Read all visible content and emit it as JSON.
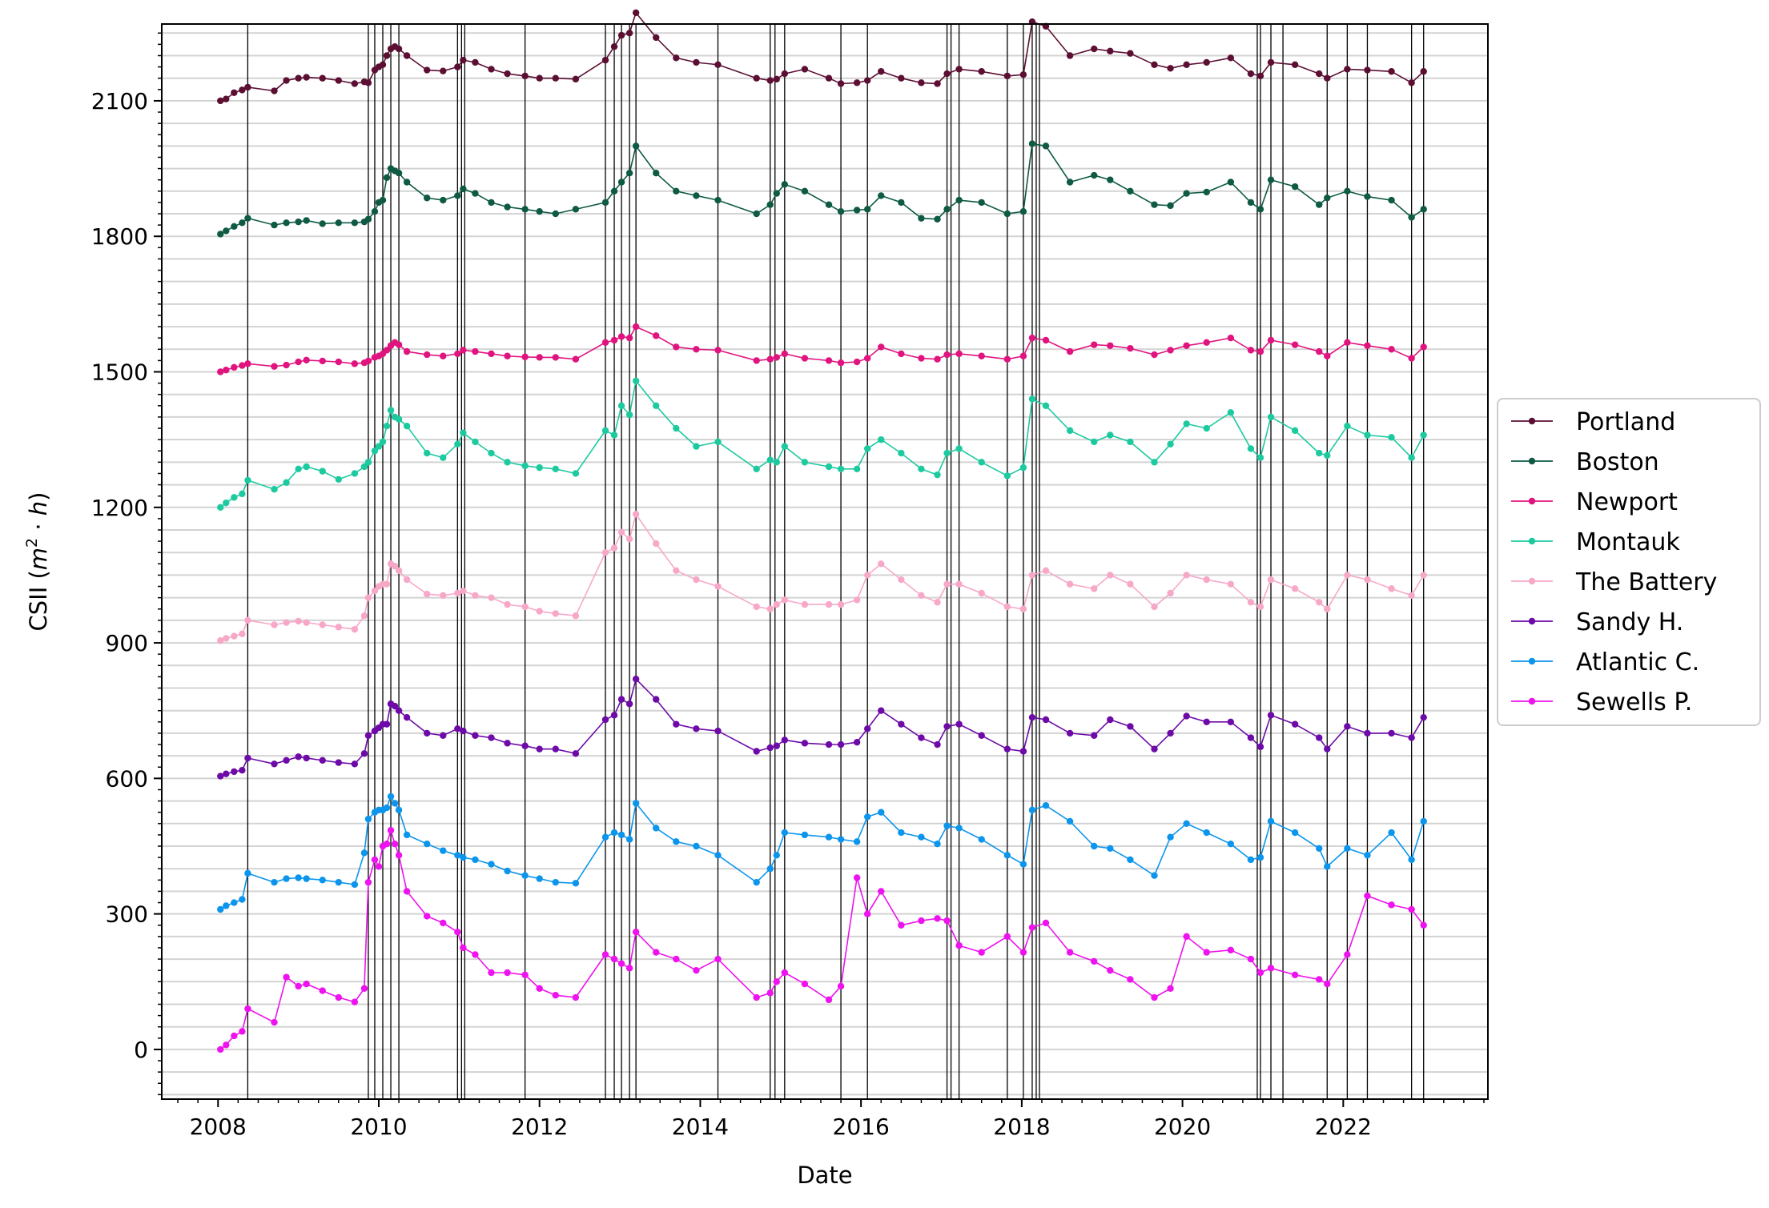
{
  "chart_data": {
    "type": "line",
    "xlabel": "Date",
    "ylabel": "CSII (m²·h)",
    "ylabel_parts": {
      "prefix": "CSII (",
      "m": "m",
      "exp": "2",
      "dot": " · ",
      "h": "h",
      "suffix": ")"
    },
    "xlim": [
      2007.3,
      2023.8
    ],
    "ylim": [
      -110,
      2270
    ],
    "x_ticks": [
      2008,
      2010,
      2012,
      2014,
      2016,
      2018,
      2020,
      2022
    ],
    "x_tick_labels": [
      "2008",
      "2010",
      "2012",
      "2014",
      "2016",
      "2018",
      "2020",
      "2022"
    ],
    "y_ticks": [
      0,
      300,
      600,
      900,
      1200,
      1500,
      1800,
      2100
    ],
    "y_tick_labels": [
      "0",
      "300",
      "600",
      "900",
      "1200",
      "1500",
      "1800",
      "2100"
    ],
    "grid": "horizontal minor",
    "legend_position": "right",
    "event_lines": [
      2008.37,
      2009.87,
      2009.95,
      2010.05,
      2010.15,
      2010.25,
      2010.98,
      2011.03,
      2011.07,
      2011.82,
      2012.82,
      2012.93,
      2013.02,
      2013.12,
      2013.2,
      2014.22,
      2014.87,
      2014.93,
      2015.05,
      2015.75,
      2016.08,
      2017.07,
      2017.12,
      2017.22,
      2017.82,
      2018.02,
      2018.13,
      2018.18,
      2018.22,
      2020.93,
      2020.97,
      2021.1,
      2021.25,
      2021.8,
      2022.05,
      2022.3,
      2022.85,
      2023.0
    ],
    "series": [
      {
        "name": "Portland",
        "color": "#5c0f33",
        "offset": 2100
      },
      {
        "name": "Boston",
        "color": "#0e5a44",
        "offset": 1800
      },
      {
        "name": "Newport",
        "color": "#e0137f",
        "offset": 1500
      },
      {
        "name": "Montauk",
        "color": "#1dcaa0",
        "offset": 1200
      },
      {
        "name": "The Battery",
        "color": "#f7a8c8",
        "offset": 900
      },
      {
        "name": "Sandy H.",
        "color": "#6d0aa8",
        "offset": 600
      },
      {
        "name": "Atlantic C.",
        "color": "#0b95ec",
        "offset": 300
      },
      {
        "name": "Sewells P.",
        "color": "#ee12ee",
        "offset": 0
      }
    ],
    "dates": [
      2008.03,
      2008.1,
      2008.2,
      2008.3,
      2008.37,
      2008.7,
      2008.85,
      2009.0,
      2009.1,
      2009.3,
      2009.5,
      2009.7,
      2009.82,
      2009.87,
      2009.95,
      2010.0,
      2010.05,
      2010.1,
      2010.15,
      2010.2,
      2010.25,
      2010.35,
      2010.6,
      2010.8,
      2010.98,
      2011.05,
      2011.2,
      2011.4,
      2011.6,
      2011.82,
      2012.0,
      2012.2,
      2012.45,
      2012.82,
      2012.93,
      2013.02,
      2013.12,
      2013.2,
      2013.45,
      2013.7,
      2013.95,
      2014.22,
      2014.7,
      2014.87,
      2014.95,
      2015.05,
      2015.3,
      2015.6,
      2015.75,
      2015.95,
      2016.08,
      2016.25,
      2016.5,
      2016.75,
      2016.95,
      2017.07,
      2017.22,
      2017.5,
      2017.82,
      2018.02,
      2018.13,
      2018.3,
      2018.6,
      2018.9,
      2019.1,
      2019.35,
      2019.65,
      2019.85,
      2020.05,
      2020.3,
      2020.6,
      2020.85,
      2020.97,
      2021.1,
      2021.4,
      2021.7,
      2021.8,
      2022.05,
      2022.3,
      2022.6,
      2022.85,
      2023.0
    ],
    "values": {
      "Portland": [
        2100,
        2104,
        2118,
        2124,
        2130,
        2122,
        2145,
        2150,
        2152,
        2150,
        2145,
        2138,
        2142,
        2140,
        2168,
        2175,
        2180,
        2200,
        2215,
        2220,
        2215,
        2200,
        2168,
        2166,
        2175,
        2190,
        2185,
        2170,
        2160,
        2155,
        2150,
        2150,
        2148,
        2190,
        2220,
        2245,
        2250,
        2295,
        2240,
        2195,
        2185,
        2180,
        2150,
        2145,
        2148,
        2160,
        2170,
        2150,
        2138,
        2140,
        2145,
        2165,
        2150,
        2140,
        2138,
        2160,
        2170,
        2165,
        2155,
        2158,
        2275,
        2265,
        2200,
        2215,
        2210,
        2205,
        2180,
        2172,
        2180,
        2185,
        2195,
        2160,
        2155,
        2185,
        2180,
        2160,
        2150,
        2170,
        2168,
        2165,
        2140,
        2165
      ],
      "Boston": [
        1805,
        1812,
        1822,
        1830,
        1840,
        1825,
        1830,
        1832,
        1835,
        1828,
        1830,
        1830,
        1832,
        1838,
        1855,
        1875,
        1880,
        1930,
        1950,
        1945,
        1940,
        1920,
        1885,
        1880,
        1890,
        1905,
        1895,
        1875,
        1865,
        1860,
        1855,
        1850,
        1860,
        1875,
        1900,
        1920,
        1940,
        2000,
        1940,
        1900,
        1890,
        1880,
        1850,
        1870,
        1895,
        1915,
        1900,
        1870,
        1855,
        1858,
        1860,
        1890,
        1875,
        1840,
        1838,
        1860,
        1880,
        1875,
        1850,
        1855,
        2005,
        2000,
        1920,
        1935,
        1925,
        1900,
        1870,
        1868,
        1895,
        1898,
        1920,
        1875,
        1860,
        1925,
        1910,
        1870,
        1885,
        1900,
        1888,
        1880,
        1842,
        1860
      ],
      "Newport": [
        1500,
        1504,
        1510,
        1514,
        1518,
        1512,
        1515,
        1522,
        1526,
        1524,
        1522,
        1518,
        1520,
        1524,
        1532,
        1535,
        1540,
        1548,
        1558,
        1565,
        1560,
        1545,
        1538,
        1535,
        1540,
        1548,
        1545,
        1540,
        1535,
        1533,
        1532,
        1532,
        1528,
        1565,
        1570,
        1578,
        1575,
        1600,
        1580,
        1555,
        1550,
        1548,
        1525,
        1528,
        1532,
        1540,
        1530,
        1525,
        1520,
        1522,
        1530,
        1555,
        1540,
        1530,
        1528,
        1538,
        1540,
        1535,
        1528,
        1535,
        1575,
        1570,
        1545,
        1560,
        1558,
        1552,
        1538,
        1548,
        1558,
        1565,
        1575,
        1548,
        1545,
        1570,
        1560,
        1545,
        1535,
        1565,
        1558,
        1550,
        1530,
        1555
      ],
      "Montauk": [
        1200,
        1210,
        1222,
        1230,
        1260,
        1240,
        1255,
        1285,
        1290,
        1280,
        1262,
        1275,
        1290,
        1300,
        1325,
        1335,
        1345,
        1380,
        1415,
        1400,
        1395,
        1380,
        1320,
        1310,
        1340,
        1365,
        1345,
        1320,
        1300,
        1292,
        1288,
        1285,
        1275,
        1370,
        1360,
        1425,
        1405,
        1480,
        1425,
        1375,
        1335,
        1345,
        1285,
        1305,
        1300,
        1335,
        1300,
        1290,
        1285,
        1285,
        1330,
        1350,
        1320,
        1285,
        1272,
        1320,
        1330,
        1300,
        1270,
        1288,
        1440,
        1425,
        1370,
        1345,
        1360,
        1345,
        1300,
        1340,
        1385,
        1375,
        1410,
        1330,
        1310,
        1400,
        1370,
        1320,
        1315,
        1380,
        1360,
        1355,
        1310,
        1360
      ],
      "The Battery": [
        905,
        910,
        915,
        920,
        950,
        940,
        945,
        948,
        945,
        940,
        935,
        930,
        960,
        1000,
        1015,
        1025,
        1030,
        1030,
        1075,
        1070,
        1060,
        1040,
        1008,
        1005,
        1010,
        1015,
        1005,
        1000,
        985,
        980,
        970,
        965,
        960,
        1100,
        1110,
        1145,
        1130,
        1185,
        1120,
        1060,
        1040,
        1025,
        980,
        975,
        985,
        995,
        985,
        985,
        985,
        995,
        1050,
        1075,
        1040,
        1005,
        990,
        1030,
        1030,
        1010,
        980,
        975,
        1050,
        1060,
        1030,
        1020,
        1050,
        1030,
        980,
        1010,
        1050,
        1040,
        1030,
        990,
        980,
        1040,
        1020,
        990,
        975,
        1050,
        1040,
        1020,
        1005,
        1050
      ],
      "Sandy H.": [
        605,
        610,
        615,
        618,
        645,
        632,
        640,
        648,
        645,
        640,
        635,
        632,
        655,
        695,
        705,
        712,
        720,
        720,
        765,
        760,
        750,
        735,
        700,
        695,
        710,
        705,
        695,
        690,
        678,
        672,
        665,
        665,
        655,
        730,
        740,
        775,
        765,
        820,
        775,
        720,
        710,
        705,
        660,
        668,
        672,
        685,
        678,
        675,
        675,
        680,
        710,
        750,
        720,
        690,
        675,
        715,
        720,
        695,
        665,
        660,
        735,
        730,
        700,
        695,
        730,
        715,
        665,
        700,
        738,
        725,
        725,
        690,
        670,
        740,
        720,
        690,
        665,
        715,
        700,
        700,
        690,
        735
      ],
      "Atlantic C.": [
        310,
        318,
        325,
        332,
        390,
        370,
        378,
        380,
        378,
        375,
        370,
        365,
        435,
        510,
        525,
        530,
        530,
        535,
        560,
        545,
        530,
        475,
        455,
        440,
        430,
        425,
        420,
        410,
        395,
        385,
        378,
        370,
        368,
        470,
        480,
        475,
        465,
        545,
        490,
        460,
        450,
        430,
        370,
        400,
        430,
        480,
        475,
        470,
        465,
        460,
        515,
        525,
        480,
        470,
        455,
        495,
        490,
        465,
        430,
        410,
        530,
        540,
        505,
        450,
        445,
        420,
        385,
        470,
        500,
        480,
        455,
        420,
        425,
        505,
        480,
        445,
        405,
        445,
        430,
        480,
        420,
        505
      ],
      "Sewells P.": [
        0,
        10,
        30,
        40,
        90,
        60,
        160,
        140,
        145,
        130,
        115,
        105,
        135,
        370,
        420,
        405,
        450,
        455,
        485,
        455,
        430,
        350,
        295,
        280,
        260,
        225,
        210,
        170,
        170,
        165,
        135,
        120,
        115,
        210,
        200,
        190,
        180,
        260,
        215,
        200,
        175,
        200,
        115,
        125,
        150,
        170,
        145,
        110,
        140,
        380,
        300,
        350,
        275,
        285,
        290,
        285,
        230,
        215,
        250,
        215,
        270,
        280,
        215,
        195,
        175,
        155,
        115,
        135,
        250,
        215,
        220,
        200,
        170,
        180,
        165,
        155,
        145,
        210,
        340,
        320,
        310,
        275
      ]
    }
  }
}
